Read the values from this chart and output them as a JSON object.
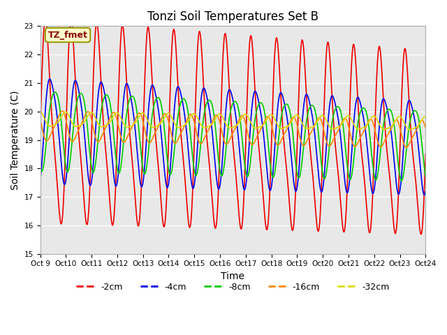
{
  "title": "Tonzi Soil Temperatures Set B",
  "xlabel": "Time",
  "ylabel": "Soil Temperature (C)",
  "ylim": [
    15.0,
    23.0
  ],
  "yticks": [
    15.0,
    16.0,
    17.0,
    18.0,
    19.0,
    20.0,
    21.0,
    22.0,
    23.0
  ],
  "annotation": "TZ_fmet",
  "series": [
    {
      "label": "-2cm",
      "color": "#ee0000",
      "lw": 1.2
    },
    {
      "label": "-4cm",
      "color": "#0000ee",
      "lw": 1.2
    },
    {
      "label": "-8cm",
      "color": "#00cc00",
      "lw": 1.2
    },
    {
      "label": "-16cm",
      "color": "#ff8800",
      "lw": 1.2
    },
    {
      "label": "-32cm",
      "color": "#dddd00",
      "lw": 1.2
    }
  ],
  "depths": {
    "-2cm": {
      "mean": 19.5,
      "amp": 3.3,
      "amp2": 0.8,
      "phase": 0.0,
      "phase2": 0.3,
      "mean_drift": -0.05
    },
    "-4cm": {
      "mean": 19.5,
      "amp": 1.8,
      "amp2": 0.3,
      "phase": 1.1,
      "phase2": 1.4,
      "mean_drift": -0.04
    },
    "-8cm": {
      "mean": 19.5,
      "amp": 1.4,
      "amp2": 0.2,
      "phase": 2.0,
      "phase2": 2.3,
      "mean_drift": -0.035
    },
    "-16cm": {
      "mean": 19.5,
      "amp": 0.5,
      "amp2": 0.1,
      "phase": 3.5,
      "phase2": 3.8,
      "mean_drift": -0.02
    },
    "-32cm": {
      "mean": 19.7,
      "amp": 0.25,
      "amp2": 0.05,
      "phase": 4.5,
      "phase2": 4.8,
      "mean_drift": -0.01
    }
  },
  "x_start_day": 9,
  "x_end_day": 24,
  "n_points": 2000,
  "xtick_days": [
    9,
    10,
    11,
    12,
    13,
    14,
    15,
    16,
    17,
    18,
    19,
    20,
    21,
    22,
    23,
    24
  ],
  "xtick_labels": [
    "Oct 9",
    "Oct 10",
    "Oct 11",
    "Oct 12",
    "Oct 13",
    "Oct 14",
    "Oct 15",
    "Oct 16",
    "Oct 17",
    "Oct 18",
    "Oct 19",
    "Oct 20",
    "Oct 21",
    "Oct 22",
    "Oct 23",
    "Oct 24"
  ],
  "background_color": "#e8e8e8",
  "figure_color": "#ffffff"
}
